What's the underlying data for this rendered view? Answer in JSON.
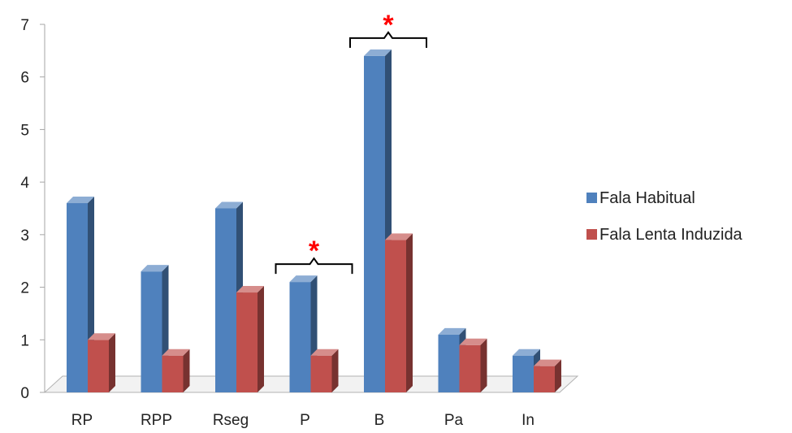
{
  "chart_data": {
    "type": "bar",
    "categories": [
      "RP",
      "RPP",
      "Rseg",
      "P",
      "B",
      "Pa",
      "In"
    ],
    "series": [
      {
        "name": "Fala Habitual",
        "color": "#4f81bd",
        "values": [
          3.6,
          2.3,
          3.5,
          2.1,
          6.4,
          1.1,
          0.7
        ]
      },
      {
        "name": "Fala Lenta Induzida",
        "color": "#c0504d",
        "values": [
          1.0,
          0.7,
          1.9,
          0.7,
          2.9,
          0.9,
          0.5
        ]
      }
    ],
    "yticks": [
      "0",
      "1",
      "2",
      "3",
      "4",
      "5",
      "6",
      "7"
    ],
    "ylim": [
      0,
      7
    ],
    "legend_position": "right",
    "annotations": [
      {
        "category": "P",
        "text": "*",
        "color": "#ff0000"
      },
      {
        "category": "B",
        "text": "*",
        "color": "#ff0000"
      }
    ],
    "style": "3d-clustered-column"
  }
}
